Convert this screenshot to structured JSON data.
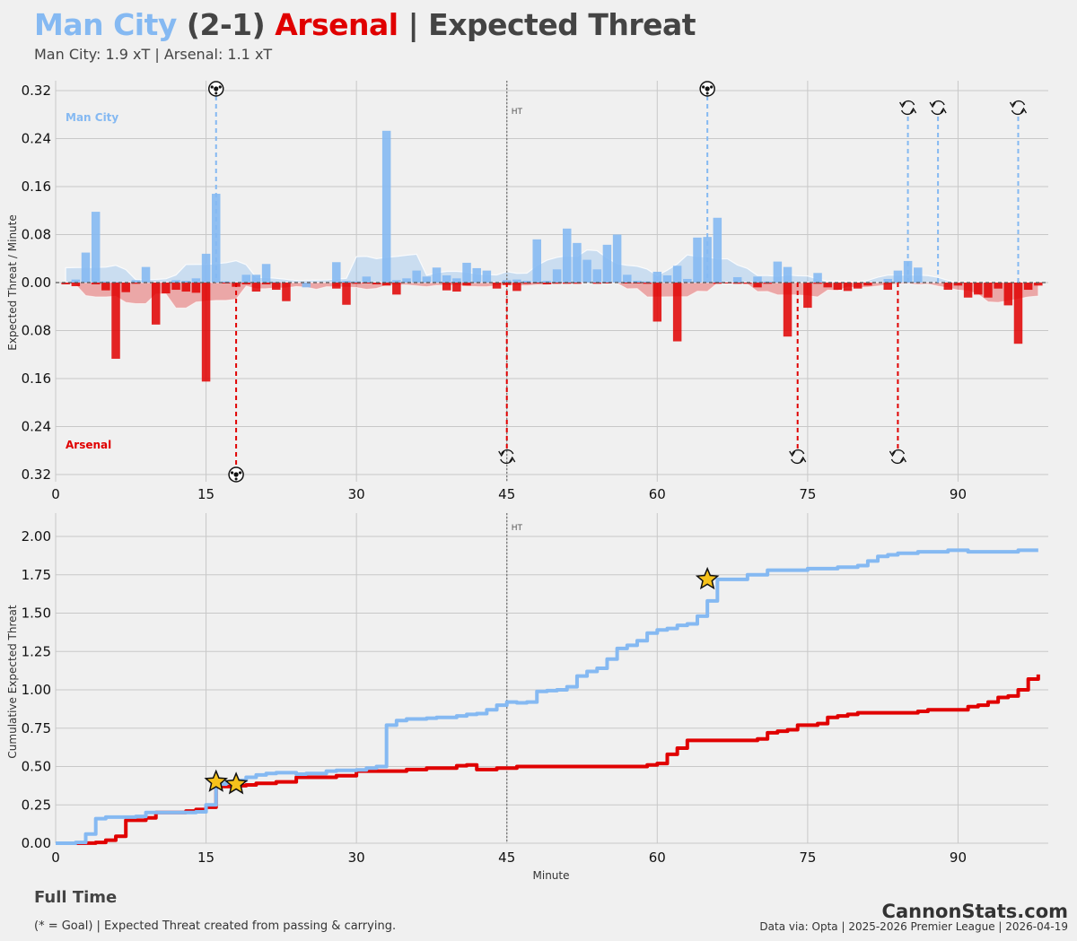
{
  "header": {
    "home_team": "Man City",
    "score": "(2-1)",
    "away_team": "Arsenal",
    "separator_title": "| Expected Threat",
    "subtitle": "Man City: 1.9 xT  |  Arsenal: 1.1 xT"
  },
  "footer": {
    "status": "Full Time",
    "note": "(* = Goal)  |  Expected Threat created from passing & carrying.",
    "brand": "CannonStats.com",
    "source": "Data via: Opta | 2025-2026 Premier League | 2026-04-19"
  },
  "colors": {
    "home": "#85b9f2",
    "away": "#e00000",
    "grid": "#c8c8c8",
    "background": "#f0f0f0"
  },
  "chart_data": [
    {
      "type": "bar",
      "ylabel": "Expected Threat / Minute",
      "xlim": [
        0,
        99
      ],
      "ylim": [
        -0.32,
        0.32
      ],
      "x_ticks": [
        0,
        15,
        30,
        45,
        60,
        75,
        90
      ],
      "y_ticks": [
        0.32,
        0.24,
        0.16,
        0.08,
        0.0,
        0.08,
        0.16,
        0.24,
        0.32
      ],
      "half_time_minute": 45,
      "half_time_label": "HT",
      "home_label": "Man City",
      "away_label": "Arsenal",
      "home_minutes": [
        2,
        3,
        4,
        5,
        6,
        7,
        8,
        9,
        10,
        11,
        12,
        13,
        14,
        15,
        16,
        17,
        18,
        19,
        20,
        21,
        22,
        23,
        24,
        25,
        26,
        27,
        28,
        29,
        30,
        31,
        32,
        33,
        34,
        35,
        36,
        37,
        38,
        39,
        40,
        41,
        42,
        43,
        44,
        45,
        46,
        47,
        48,
        49,
        50,
        51,
        52,
        53,
        54,
        55,
        56,
        57,
        58,
        59,
        60,
        61,
        62,
        63,
        64,
        65,
        66,
        67,
        68,
        69,
        70,
        71,
        72,
        73,
        74,
        75,
        76,
        77,
        78,
        79,
        80,
        81,
        82,
        83,
        84,
        85,
        86,
        87,
        88,
        89,
        90,
        91,
        92,
        93,
        94,
        95,
        96,
        97,
        98
      ],
      "home_values": [
        0.005,
        0.05,
        0.118,
        0.002,
        0.001,
        0.0,
        0.004,
        0.026,
        0.0,
        0.0,
        0.004,
        0.003,
        0.007,
        0.048,
        0.148,
        0.002,
        0.0,
        0.013,
        0.013,
        0.031,
        0.001,
        0.0,
        0.0,
        -0.008,
        0.0,
        0.0,
        0.034,
        0.003,
        0.002,
        0.01,
        0.0,
        0.253,
        0.004,
        0.007,
        0.02,
        0.01,
        0.025,
        0.012,
        0.007,
        0.033,
        0.024,
        0.02,
        0.0,
        0.004,
        0.005,
        0.003,
        0.072,
        0.003,
        0.022,
        0.09,
        0.066,
        0.038,
        0.022,
        0.063,
        0.08,
        0.013,
        0.003,
        0.002,
        0.018,
        0.012,
        0.028,
        0.006,
        0.075,
        0.076,
        0.108,
        0.0,
        0.009,
        0.0,
        0.01,
        0.002,
        0.035,
        0.026,
        0.0,
        0.0,
        0.016,
        0.0,
        0.0,
        0.0,
        0.0,
        0.0,
        0.0,
        0.006,
        0.02,
        0.036,
        0.025,
        0.0,
        0.0,
        0.0,
        0.0,
        0.0,
        0.0,
        0.0,
        0.0,
        0.0,
        0.0,
        0.0,
        0.0
      ],
      "away_minutes": [
        1,
        2,
        3,
        4,
        5,
        6,
        7,
        8,
        9,
        10,
        11,
        12,
        13,
        14,
        15,
        16,
        17,
        18,
        19,
        20,
        21,
        22,
        23,
        24,
        25,
        26,
        27,
        28,
        29,
        30,
        31,
        32,
        33,
        34,
        35,
        36,
        37,
        38,
        39,
        40,
        41,
        42,
        43,
        44,
        45,
        46,
        47,
        48,
        49,
        50,
        51,
        52,
        53,
        54,
        55,
        56,
        57,
        58,
        59,
        60,
        61,
        62,
        63,
        64,
        65,
        66,
        67,
        68,
        69,
        70,
        71,
        72,
        73,
        74,
        75,
        76,
        77,
        78,
        79,
        80,
        81,
        82,
        83,
        84,
        85,
        86,
        87,
        88,
        89,
        90,
        91,
        92,
        93,
        94,
        95,
        96,
        97,
        98
      ],
      "away_values": [
        0.003,
        0.006,
        0.0,
        0.003,
        0.013,
        0.127,
        0.016,
        0.002,
        0.0,
        0.07,
        0.018,
        0.012,
        0.015,
        0.017,
        0.165,
        0.0,
        0.001,
        0.007,
        0.003,
        0.015,
        0.003,
        0.012,
        0.031,
        0.0,
        0.0,
        0.0,
        0.0,
        0.01,
        0.037,
        0.002,
        0.001,
        0.003,
        0.005,
        0.02,
        0.0,
        0.0,
        0.0,
        0.0,
        0.013,
        0.015,
        0.005,
        0.0,
        0.0,
        0.01,
        0.004,
        0.014,
        0.002,
        0.001,
        0.003,
        0.002,
        0.002,
        0.002,
        0.0,
        0.002,
        0.001,
        0.0,
        0.001,
        0.001,
        0.002,
        0.065,
        0.0,
        0.098,
        0.0,
        0.0,
        0.0,
        0.002,
        0.001,
        0.002,
        0.002,
        0.008,
        0.002,
        0.0,
        0.09,
        0.0,
        0.042,
        0.002,
        0.008,
        0.012,
        0.014,
        0.01,
        0.005,
        0.0,
        0.012,
        0.0,
        0.0,
        0.0,
        0.0,
        0.0,
        0.012,
        0.005,
        0.025,
        0.02,
        0.025,
        0.01,
        0.038,
        0.102,
        0.012,
        0.005
      ],
      "home_goal_minutes": [
        16,
        65
      ],
      "away_goal_minutes": [
        18
      ],
      "home_sub_minutes": [
        85,
        88,
        96
      ],
      "away_sub_minutes": [
        45,
        74,
        84
      ]
    },
    {
      "type": "line",
      "xlabel": "Minute",
      "ylabel": "Cumulative Expected Threat",
      "xlim": [
        0,
        99
      ],
      "ylim": [
        0,
        2.1
      ],
      "x_ticks": [
        0,
        15,
        30,
        45,
        60,
        75,
        90
      ],
      "y_ticks": [
        0.0,
        0.25,
        0.5,
        0.75,
        1.0,
        1.25,
        1.5,
        1.75,
        2.0
      ],
      "half_time_minute": 45,
      "half_time_label": "HT",
      "series": [
        {
          "name": "Man City",
          "x": [
            0,
            2,
            3,
            4,
            5,
            8,
            9,
            14,
            15,
            16,
            17,
            18,
            19,
            20,
            21,
            22,
            24,
            25,
            27,
            28,
            30,
            31,
            32,
            33,
            34,
            35,
            37,
            38,
            40,
            41,
            42,
            43,
            44,
            45,
            46,
            47,
            48,
            49,
            50,
            51,
            52,
            53,
            54,
            55,
            56,
            57,
            58,
            59,
            60,
            61,
            62,
            63,
            64,
            65,
            66,
            69,
            71,
            72,
            75,
            78,
            80,
            81,
            82,
            83,
            84,
            86,
            89,
            91,
            96,
            98
          ],
          "y": [
            0.0,
            0.005,
            0.06,
            0.16,
            0.17,
            0.175,
            0.2,
            0.205,
            0.25,
            0.385,
            0.395,
            0.41,
            0.43,
            0.445,
            0.455,
            0.46,
            0.45,
            0.455,
            0.47,
            0.475,
            0.478,
            0.49,
            0.5,
            0.77,
            0.8,
            0.81,
            0.815,
            0.82,
            0.83,
            0.84,
            0.845,
            0.87,
            0.9,
            0.92,
            0.915,
            0.92,
            0.99,
            0.995,
            1.0,
            1.02,
            1.09,
            1.12,
            1.14,
            1.2,
            1.27,
            1.29,
            1.32,
            1.37,
            1.39,
            1.4,
            1.42,
            1.43,
            1.48,
            1.58,
            1.72,
            1.75,
            1.78,
            1.78,
            1.79,
            1.8,
            1.81,
            1.84,
            1.87,
            1.88,
            1.89,
            1.9,
            1.91,
            1.9,
            1.91,
            1.91
          ]
        },
        {
          "name": "Arsenal",
          "x": [
            0,
            3,
            4,
            5,
            6,
            7,
            9,
            10,
            13,
            14,
            15,
            16,
            18,
            19,
            20,
            21,
            22,
            24,
            28,
            29,
            30,
            35,
            36,
            37,
            39,
            40,
            41,
            42,
            43,
            44,
            45,
            46,
            59,
            60,
            61,
            62,
            63,
            64,
            65,
            69,
            70,
            71,
            72,
            73,
            74,
            75,
            76,
            77,
            78,
            79,
            80,
            86,
            87,
            88,
            90,
            91,
            92,
            93,
            94,
            95,
            96,
            97,
            98
          ],
          "y": [
            0.0,
            0.001,
            0.005,
            0.02,
            0.045,
            0.15,
            0.165,
            0.2,
            0.21,
            0.22,
            0.235,
            0.37,
            0.375,
            0.38,
            0.39,
            0.39,
            0.4,
            0.43,
            0.44,
            0.44,
            0.47,
            0.48,
            0.48,
            0.49,
            0.49,
            0.505,
            0.51,
            0.48,
            0.48,
            0.49,
            0.49,
            0.5,
            0.51,
            0.52,
            0.58,
            0.62,
            0.67,
            0.67,
            0.67,
            0.67,
            0.68,
            0.72,
            0.73,
            0.74,
            0.77,
            0.77,
            0.78,
            0.82,
            0.83,
            0.84,
            0.85,
            0.86,
            0.87,
            0.87,
            0.87,
            0.89,
            0.9,
            0.92,
            0.95,
            0.96,
            1.0,
            1.07,
            1.1
          ]
        }
      ],
      "goal_markers": [
        {
          "team": "Man City",
          "x": 16,
          "y": 0.4
        },
        {
          "team": "Arsenal",
          "x": 18,
          "y": 0.385
        },
        {
          "team": "Man City",
          "x": 65,
          "y": 1.72
        }
      ]
    }
  ]
}
